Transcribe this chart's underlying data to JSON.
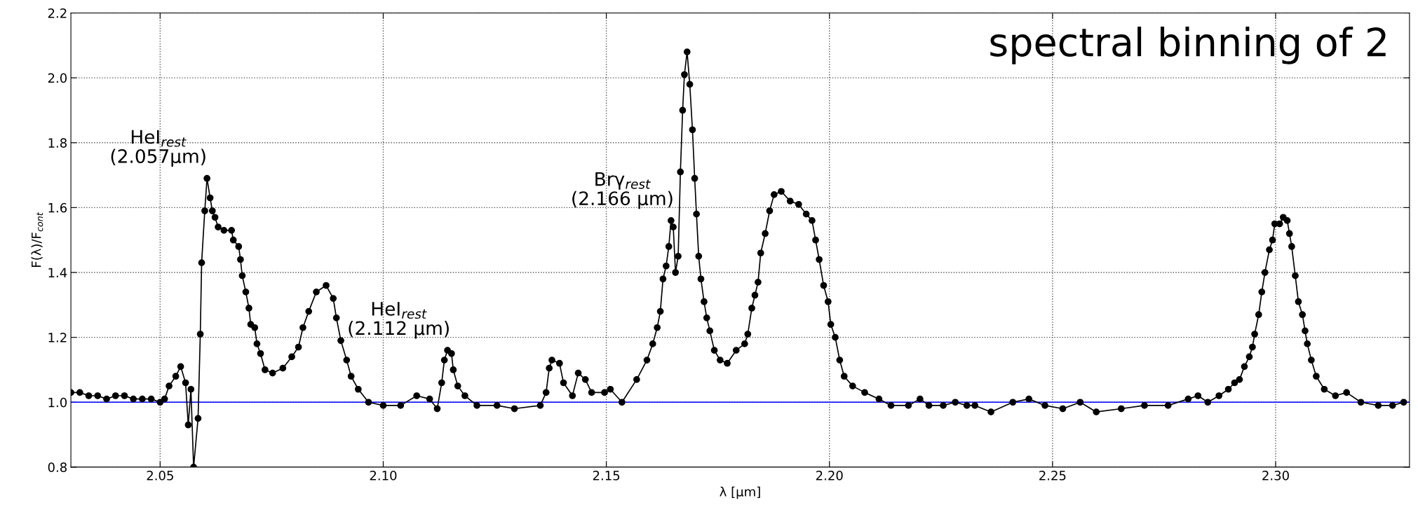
{
  "chart_data": {
    "type": "line",
    "marker": "circle",
    "line_style": "solid",
    "grid": true,
    "xlabel": "λ [μm]",
    "ylabel": "F(λ)/F$_{cont}$",
    "xlim": [
      2.03,
      2.33
    ],
    "ylim": [
      0.8,
      2.2
    ],
    "xticks": [
      {
        "value": 2.05,
        "label": "2.05"
      },
      {
        "value": 2.1,
        "label": "2.10"
      },
      {
        "value": 2.15,
        "label": "2.15"
      },
      {
        "value": 2.2,
        "label": "2.20"
      },
      {
        "value": 2.25,
        "label": "2.25"
      },
      {
        "value": 2.3,
        "label": "2.30"
      }
    ],
    "yticks": [
      {
        "value": 0.8,
        "label": "0.8"
      },
      {
        "value": 1.0,
        "label": "1.0"
      },
      {
        "value": 1.2,
        "label": "1.2"
      },
      {
        "value": 1.4,
        "label": "1.4"
      },
      {
        "value": 1.6,
        "label": "1.6"
      },
      {
        "value": 1.8,
        "label": "1.8"
      },
      {
        "value": 2.0,
        "label": "2.0"
      },
      {
        "value": 2.2,
        "label": "2.2"
      }
    ],
    "ref_lines": [
      {
        "axis": "y",
        "value": 1.0,
        "color": "#0000ff"
      }
    ],
    "annotations": [
      {
        "text": "HeI$_{rest}$\n(2.057μm)",
        "x": 2.0605,
        "y": 1.69
      },
      {
        "text": "HeI$_{rest}$\n(2.112 μm)",
        "x": 2.1144,
        "y": 1.16
      },
      {
        "text": "Brγ$_{rest}$\n(2.166 μm)",
        "x": 2.1645,
        "y": 1.56
      },
      "spectral binning of 2"
    ],
    "series": [
      {
        "color": "#000000",
        "x": [
          2.03,
          2.032,
          2.034,
          2.036,
          2.038,
          2.04,
          2.042,
          2.044,
          2.046,
          2.048,
          2.05,
          2.051,
          2.052,
          2.0535,
          2.0546,
          2.0557,
          2.0563,
          2.0569,
          2.0575,
          2.0585,
          2.059,
          2.0593,
          2.06,
          2.0605,
          2.0612,
          2.0617,
          2.0623,
          2.063,
          2.0643,
          2.066,
          2.0664,
          2.0676,
          2.068,
          2.0684,
          2.0692,
          2.0699,
          2.0703,
          2.0712,
          2.0717,
          2.0725,
          2.0735,
          2.0752,
          2.0775,
          2.0795,
          2.081,
          2.082,
          2.0833,
          2.085,
          2.0872,
          2.0888,
          2.0895,
          2.0905,
          2.0918,
          2.0928,
          2.0944,
          2.0967,
          2.1,
          2.1039,
          2.1075,
          2.1104,
          2.1121,
          2.1131,
          2.1137,
          2.1144,
          2.1153,
          2.1157,
          2.1167,
          2.1183,
          2.121,
          2.1255,
          2.1294,
          2.1352,
          2.1365,
          2.1372,
          2.1378,
          2.1395,
          2.1404,
          2.1424,
          2.1437,
          2.1453,
          2.1467,
          2.1496,
          2.1509,
          2.1535,
          2.1568,
          2.1591,
          2.1604,
          2.1614,
          2.1621,
          2.1627,
          2.1634,
          2.164,
          2.1645,
          2.165,
          2.1655,
          2.1661,
          2.1666,
          2.1671,
          2.1675,
          2.1681,
          2.1687,
          2.1693,
          2.1698,
          2.1702,
          2.1707,
          2.1712,
          2.1719,
          2.1725,
          2.1732,
          2.1742,
          2.1755,
          2.1771,
          2.1791,
          2.181,
          2.1817,
          2.1826,
          2.1833,
          2.184,
          2.1846,
          2.1856,
          2.1866,
          2.1876,
          2.1892,
          2.1912,
          2.1931,
          2.1948,
          2.1961,
          2.1969,
          2.1977,
          2.1987,
          2.1997,
          2.2003,
          2.2013,
          2.2023,
          2.2033,
          2.2052,
          2.2079,
          2.2111,
          2.2138,
          2.2177,
          2.2203,
          2.2223,
          2.2255,
          2.2282,
          2.2308,
          2.2326,
          2.2362,
          2.2411,
          2.2447,
          2.2483,
          2.2523,
          2.2562,
          2.2598,
          2.2654,
          2.2706,
          2.2759,
          2.2804,
          2.2826,
          2.2848,
          2.2873,
          2.2894,
          2.2908,
          2.2919,
          2.293,
          2.2941,
          2.2948,
          2.2953,
          2.2962,
          2.2969,
          2.2976,
          2.2986,
          2.2993,
          2.2998,
          2.3009,
          2.3017,
          2.3026,
          2.3031,
          2.3036,
          2.3044,
          2.3051,
          2.306,
          2.3066,
          2.3071,
          2.308,
          2.3091,
          2.3109,
          2.3134,
          2.3159,
          2.3191,
          2.323,
          2.3262,
          2.3287
        ],
        "values": [
          1.03,
          1.03,
          1.02,
          1.02,
          1.01,
          1.02,
          1.02,
          1.01,
          1.01,
          1.01,
          1.0,
          1.01,
          1.05,
          1.08,
          1.11,
          1.06,
          0.93,
          1.04,
          0.8,
          0.95,
          1.21,
          1.43,
          1.59,
          1.69,
          1.63,
          1.59,
          1.57,
          1.54,
          1.53,
          1.53,
          1.5,
          1.48,
          1.44,
          1.39,
          1.34,
          1.29,
          1.24,
          1.23,
          1.18,
          1.15,
          1.1,
          1.09,
          1.105,
          1.14,
          1.17,
          1.23,
          1.28,
          1.34,
          1.36,
          1.32,
          1.26,
          1.19,
          1.13,
          1.08,
          1.04,
          1.0,
          0.99,
          0.99,
          1.02,
          1.01,
          0.98,
          1.06,
          1.13,
          1.16,
          1.15,
          1.1,
          1.05,
          1.02,
          0.99,
          0.99,
          0.98,
          0.99,
          1.03,
          1.105,
          1.13,
          1.12,
          1.06,
          1.02,
          1.09,
          1.07,
          1.03,
          1.03,
          1.04,
          1.0,
          1.07,
          1.13,
          1.18,
          1.23,
          1.28,
          1.38,
          1.42,
          1.48,
          1.56,
          1.54,
          1.4,
          1.45,
          1.71,
          1.9,
          2.01,
          2.08,
          1.98,
          1.84,
          1.69,
          1.58,
          1.45,
          1.38,
          1.31,
          1.26,
          1.22,
          1.16,
          1.13,
          1.12,
          1.16,
          1.18,
          1.21,
          1.29,
          1.33,
          1.37,
          1.46,
          1.52,
          1.59,
          1.64,
          1.65,
          1.62,
          1.61,
          1.58,
          1.56,
          1.5,
          1.44,
          1.36,
          1.31,
          1.24,
          1.2,
          1.13,
          1.08,
          1.05,
          1.03,
          1.01,
          0.99,
          0.99,
          1.01,
          0.99,
          0.99,
          1.0,
          0.99,
          0.99,
          0.97,
          1.0,
          1.01,
          0.99,
          0.98,
          1.0,
          0.97,
          0.98,
          0.99,
          0.99,
          1.01,
          1.02,
          1.0,
          1.02,
          1.04,
          1.06,
          1.07,
          1.11,
          1.14,
          1.17,
          1.21,
          1.27,
          1.34,
          1.4,
          1.47,
          1.5,
          1.55,
          1.55,
          1.57,
          1.56,
          1.52,
          1.48,
          1.39,
          1.31,
          1.27,
          1.22,
          1.18,
          1.13,
          1.08,
          1.04,
          1.02,
          1.03,
          1.0,
          0.99,
          0.99,
          1.0
        ]
      }
    ]
  }
}
